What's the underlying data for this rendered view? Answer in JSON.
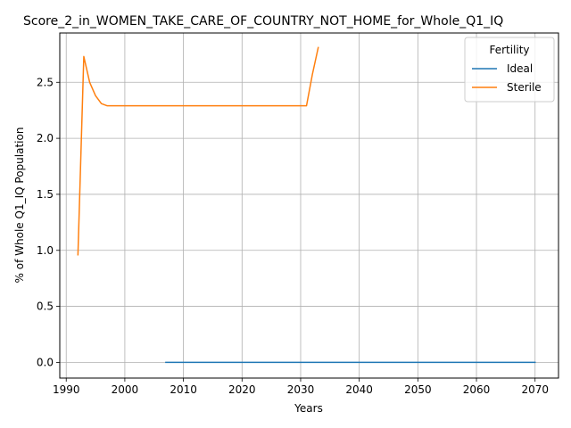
{
  "chart_data": {
    "type": "line",
    "title": "Score_2_in_WOMEN_TAKE_CARE_OF_COUNTRY_NOT_HOME_for_Whole_Q1_IQ",
    "xlabel": "Years",
    "ylabel": "% of Whole Q1_IQ Population",
    "xlim": [
      1988.9,
      2074
    ],
    "ylim": [
      -0.14,
      2.94
    ],
    "x_ticks": [
      "1990",
      "2000",
      "2010",
      "2020",
      "2030",
      "2040",
      "2050",
      "2060",
      "2070"
    ],
    "x_tick_values": [
      1990,
      2000,
      2010,
      2020,
      2030,
      2040,
      2050,
      2060,
      2070
    ],
    "y_ticks": [
      "0.0",
      "0.5",
      "1.0",
      "1.5",
      "2.0",
      "2.5"
    ],
    "y_tick_values": [
      0.0,
      0.5,
      1.0,
      1.5,
      2.0,
      2.5
    ],
    "grid": true,
    "legend": {
      "title": "Fertility",
      "placement": "top-right"
    },
    "series": [
      {
        "name": "Ideal",
        "color": "#1f77b4",
        "x": [
          2007,
          2070
        ],
        "y": [
          0.0,
          0.0
        ]
      },
      {
        "name": "Sterile",
        "color": "#ff7f0e",
        "x": [
          1992,
          1993,
          1994,
          1995,
          1996,
          1997,
          1998,
          2000,
          2010,
          2020,
          2030,
          2031,
          2032,
          2033
        ],
        "y": [
          0.96,
          2.73,
          2.5,
          2.38,
          2.31,
          2.29,
          2.29,
          2.29,
          2.29,
          2.29,
          2.29,
          2.29,
          2.57,
          2.81
        ]
      }
    ]
  }
}
